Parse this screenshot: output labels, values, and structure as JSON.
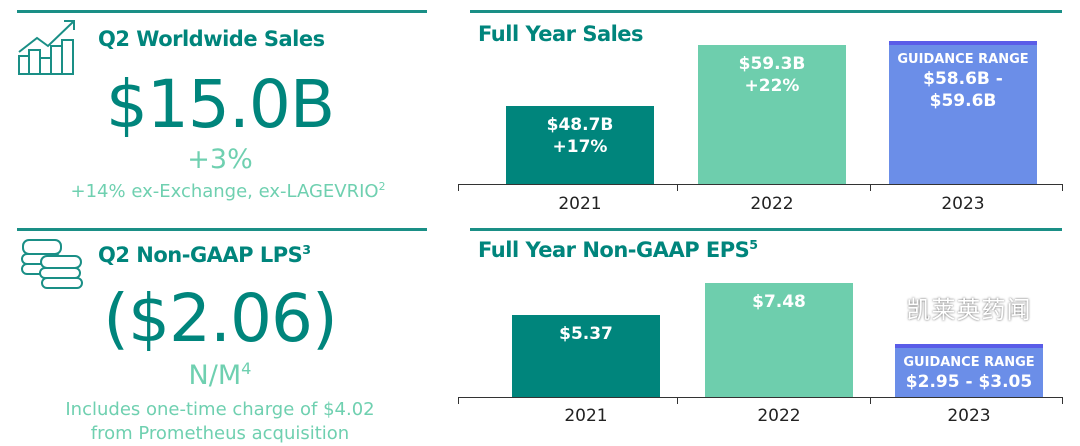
{
  "left": {
    "sales": {
      "title": "Q2 Worldwide Sales",
      "value": "$15.0B",
      "growth": "+3%",
      "note": "+14% ex-Exchange, ex-LAGEVRIO",
      "note_sup": "2",
      "icon": "growth-chart-icon"
    },
    "eps": {
      "title": "Q2 Non-GAAP LPS",
      "title_sup": "3",
      "value": "($2.06)",
      "growth": "N/M",
      "growth_sup": "4",
      "note_line1": "Includes one-time charge of $4.02",
      "note_line2": "from Prometheus acquisition",
      "icon": "coins-icon"
    }
  },
  "colors": {
    "dark_teal": "#00857c",
    "light_teal": "#6ecead",
    "guidance_blue": "#6b8ee8",
    "guidance_top": "#5a5ce8"
  },
  "chart_data": [
    {
      "type": "bar",
      "title": "Full Year Sales",
      "categories": [
        "2021",
        "2022",
        "2023"
      ],
      "values": [
        48.7,
        59.3,
        59.6
      ],
      "labels": [
        [
          "$48.7B",
          "+17%"
        ],
        [
          "$59.3B",
          "+22%"
        ],
        [
          "GUIDANCE RANGE",
          "$58.6B - $59.6B"
        ]
      ],
      "guidance": {
        "category": "2023",
        "low": 58.6,
        "high": 59.6
      },
      "ylim": [
        35,
        60
      ]
    },
    {
      "type": "bar",
      "title": "Full Year Non-GAAP EPS",
      "title_sup": "5",
      "categories": [
        "2021",
        "2022",
        "2023"
      ],
      "values": [
        5.37,
        7.48,
        3.05
      ],
      "labels": [
        [
          "$5.37"
        ],
        [
          "$7.48"
        ],
        [
          "GUIDANCE RANGE",
          "$2.95 - $3.05"
        ]
      ],
      "guidance": {
        "category": "2023",
        "low": 2.95,
        "high": 3.05
      },
      "ylim": [
        0,
        8.3
      ]
    }
  ],
  "watermark": "凯莱英药闻"
}
